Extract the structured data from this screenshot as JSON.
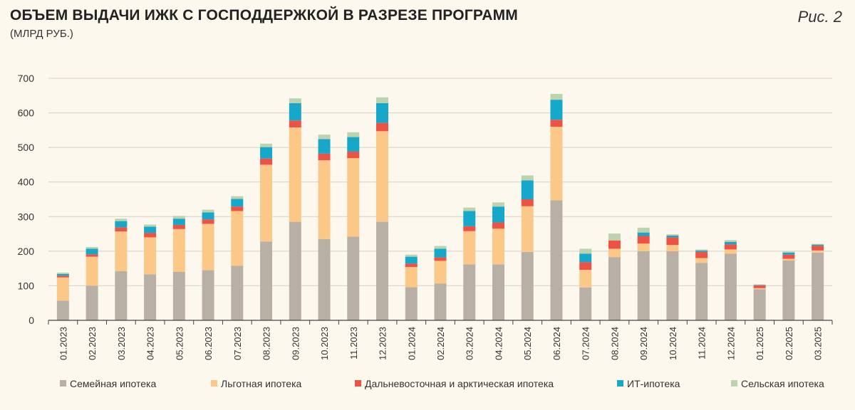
{
  "header": {
    "title": "ОБЪЕМ ВЫДАЧИ ИЖК С ГОСПОДДЕРЖКОЙ В РАЗРЕЗЕ ПРОГРАММ",
    "subtitle": "(МЛРД РУБ.)",
    "figure_label": "Рис. 2"
  },
  "chart_data": {
    "type": "bar",
    "stacked": true,
    "title": "ОБЪЕМ ВЫДАЧИ ИЖК С ГОСПОДДЕРЖКОЙ В РАЗРЕЗЕ ПРОГРАММ",
    "subtitle": "(МЛРД РУБ.)",
    "xlabel": "",
    "ylabel": "",
    "ylim": [
      0,
      700
    ],
    "yticks": [
      0,
      100,
      200,
      300,
      400,
      500,
      600,
      700
    ],
    "grid": true,
    "legend_position": "bottom",
    "categories": [
      "01.2023",
      "02.2023",
      "03.2023",
      "04.2023",
      "05.2023",
      "06.2023",
      "07.2023",
      "08.2023",
      "09.2023",
      "10.2023",
      "11.2023",
      "12.2023",
      "01.2024",
      "02.2024",
      "03.2024",
      "04.2024",
      "05.2024",
      "06.2024",
      "07.2024",
      "08.2024",
      "09.2024",
      "10.2024",
      "11.2024",
      "12.2024",
      "01.2025",
      "02.2025",
      "03.2025"
    ],
    "series": [
      {
        "name": "Семейная ипотека",
        "color": "#b8b0a4",
        "values": [
          57,
          100,
          142,
          133,
          140,
          145,
          158,
          228,
          285,
          235,
          242,
          285,
          96,
          106,
          162,
          162,
          198,
          347,
          95,
          183,
          200,
          200,
          166,
          193,
          90,
          173,
          196
        ]
      },
      {
        "name": "Льготная ипотека",
        "color": "#fbc888",
        "values": [
          67,
          84,
          115,
          107,
          124,
          134,
          158,
          222,
          273,
          228,
          227,
          262,
          58,
          66,
          96,
          103,
          132,
          213,
          51,
          24,
          22,
          18,
          14,
          12,
          3,
          5,
          6
        ]
      },
      {
        "name": "Дальневосточная и арктическая ипотека",
        "color": "#ee5245",
        "values": [
          5,
          7,
          12,
          13,
          12,
          13,
          13,
          18,
          20,
          19,
          19,
          24,
          10,
          10,
          14,
          18,
          20,
          20,
          22,
          24,
          22,
          22,
          18,
          15,
          8,
          12,
          14
        ]
      },
      {
        "name": "ИТ-ипотека",
        "color": "#16a8cb",
        "values": [
          5,
          16,
          18,
          18,
          18,
          20,
          22,
          33,
          50,
          42,
          42,
          57,
          20,
          25,
          44,
          46,
          55,
          58,
          25,
          0,
          10,
          5,
          4,
          7,
          1,
          6,
          3
        ]
      },
      {
        "name": "Сельская ипотека",
        "color": "#bcd3ad",
        "values": [
          4,
          5,
          7,
          6,
          8,
          8,
          8,
          10,
          14,
          13,
          14,
          17,
          6,
          8,
          10,
          12,
          14,
          17,
          14,
          20,
          14,
          4,
          3,
          5,
          2,
          3,
          2
        ]
      }
    ]
  }
}
